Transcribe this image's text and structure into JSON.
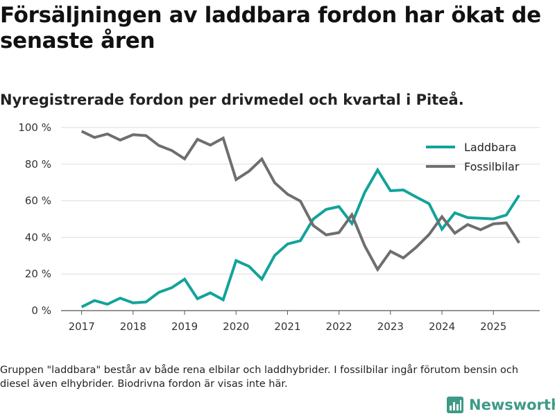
{
  "header": {
    "title": "Försäljningen av laddbara fordon har ökat de senaste åren",
    "subtitle": "Nyregistrerade fordon per drivmedel och kvartal i Piteå."
  },
  "footer": {
    "note": "Gruppen \"laddbara\" består av både rena elbilar och laddhybrider. I fossilbilar ingår förutom bensin och diesel även elhybrider. Biodrivna fordon är visas inte här.",
    "brand": "Newsworthy"
  },
  "colors": {
    "laddbara": "#12a39a",
    "fossilbilar": "#6e6e6e",
    "grid": "#dddddd",
    "brand": "#3e9a86"
  },
  "chart_data": {
    "type": "line",
    "title": "Försäljningen av laddbara fordon har ökat de senaste åren",
    "subtitle": "Nyregistrerade fordon per drivmedel och kvartal i Piteå.",
    "xlabel": "",
    "ylabel": "",
    "xlim": [
      2016.6,
      2025.9
    ],
    "ylim": [
      0,
      100
    ],
    "y_ticks": [
      0,
      20,
      40,
      60,
      80,
      100
    ],
    "y_tick_labels": [
      "0 %",
      "20 %",
      "40 %",
      "60 %",
      "80 %",
      "100 %"
    ],
    "x_ticks": [
      2017,
      2018,
      2019,
      2020,
      2021,
      2022,
      2023,
      2024,
      2025
    ],
    "x_tick_labels": [
      "2017",
      "2018",
      "2019",
      "2020",
      "2021",
      "2022",
      "2023",
      "2024",
      "2025"
    ],
    "grid": true,
    "legend_position": "top-right",
    "x": [
      2017.0,
      2017.25,
      2017.5,
      2017.75,
      2018.0,
      2018.25,
      2018.5,
      2018.75,
      2019.0,
      2019.25,
      2019.5,
      2019.75,
      2020.0,
      2020.25,
      2020.5,
      2020.75,
      2021.0,
      2021.25,
      2021.5,
      2021.75,
      2022.0,
      2022.25,
      2022.5,
      2022.75,
      2023.0,
      2023.25,
      2023.5,
      2023.75,
      2024.0,
      2024.25,
      2024.5,
      2024.75,
      2025.0,
      2025.25,
      2025.5
    ],
    "series": [
      {
        "name": "Laddbara",
        "color": "#12a39a",
        "values": [
          2,
          5.5,
          3.5,
          6.8,
          4.2,
          4.7,
          10,
          12.5,
          17.2,
          6.5,
          9.7,
          5.9,
          27.3,
          24.2,
          17.2,
          30.1,
          36.4,
          38.2,
          50,
          55.3,
          56.8,
          47.6,
          64.6,
          76.8,
          65.5,
          65.9,
          62.1,
          58.4,
          44.5,
          53.4,
          50.8,
          50.5,
          50.1,
          52.2,
          63
        ]
      },
      {
        "name": "Fossilbilar",
        "color": "#6e6e6e",
        "values": [
          98,
          94.6,
          96.5,
          93.2,
          96.1,
          95.6,
          90.2,
          87.5,
          82.9,
          93.6,
          90.4,
          94.2,
          71.6,
          76.1,
          82.8,
          69.9,
          63.6,
          59.8,
          46.5,
          41.4,
          42.6,
          52.4,
          35.4,
          22.5,
          32.4,
          28.8,
          34.6,
          41.6,
          51.3,
          42.3,
          47,
          44.2,
          47.4,
          47.9,
          37
        ]
      }
    ]
  }
}
